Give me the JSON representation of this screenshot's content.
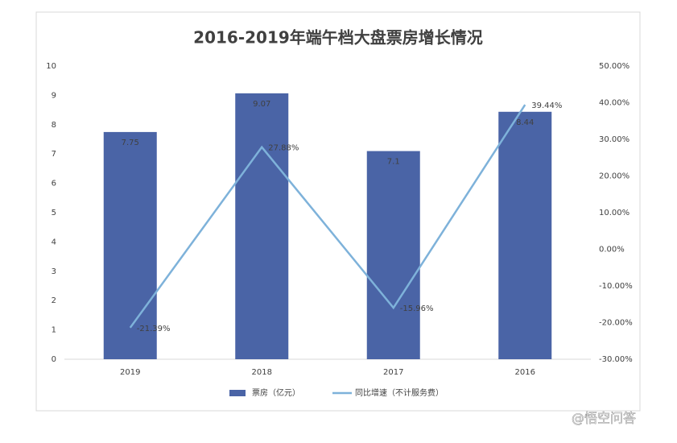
{
  "chart_data": {
    "type": "bar",
    "title": "2016-2019年端午档大盘票房增长情况",
    "categories": [
      "2019",
      "2018",
      "2017",
      "2016"
    ],
    "series": [
      {
        "name": "票房（亿元）",
        "type": "bar",
        "color": "#4a64a6",
        "values": [
          7.75,
          9.07,
          7.1,
          8.44
        ]
      },
      {
        "name": "同比增速（不计服务费）",
        "type": "line",
        "axis": "y2",
        "color": "#7eb2da",
        "values": [
          -21.39,
          27.88,
          -15.96,
          39.44
        ],
        "value_labels": [
          "-21.39%",
          "27.88%",
          "-15.96%",
          "39.44%"
        ]
      }
    ],
    "ylim": [
      0,
      10
    ],
    "yticks": [
      0,
      1,
      2,
      3,
      4,
      5,
      6,
      7,
      8,
      9,
      10
    ],
    "y2lim": [
      -30,
      50
    ],
    "y2ticks": [
      {
        "value": -30,
        "label": "-30.00%"
      },
      {
        "value": -20,
        "label": "-20.00%"
      },
      {
        "value": -10,
        "label": "-10.00%"
      },
      {
        "value": 0,
        "label": "0.00%"
      },
      {
        "value": 10,
        "label": "10.00%"
      },
      {
        "value": 20,
        "label": "20.00%"
      },
      {
        "value": 30,
        "label": "30.00%"
      },
      {
        "value": 40,
        "label": "40.00%"
      },
      {
        "value": 50,
        "label": "50.00%"
      }
    ],
    "grid": false,
    "legend": "bottom"
  },
  "watermark": "@悟空问答"
}
